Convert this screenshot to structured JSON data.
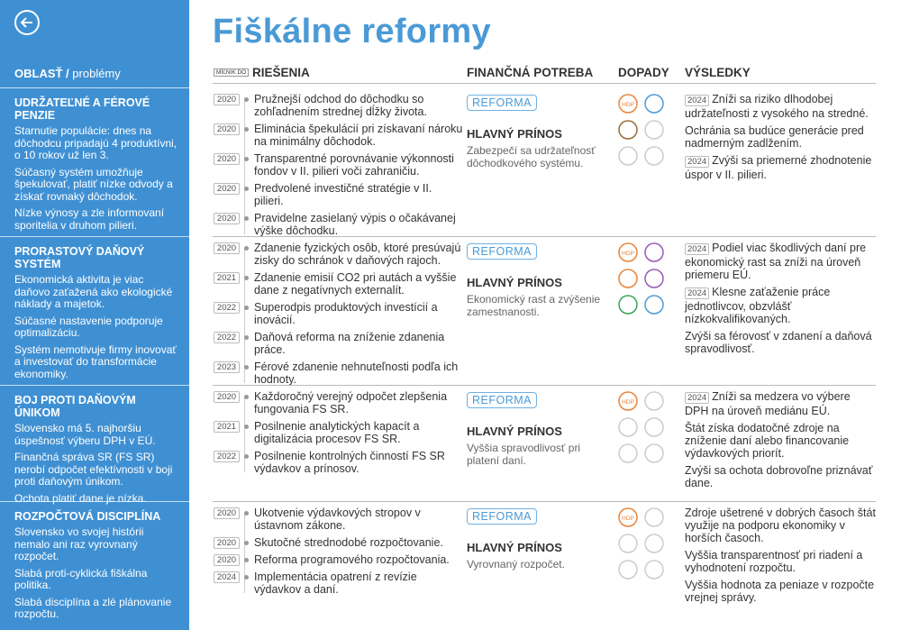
{
  "header": {
    "title": "Fiškálne reformy"
  },
  "columns": {
    "area": "OBLASŤ /",
    "problems": "problémy",
    "milestone": "MÍĽNIK DO",
    "solutions": "RIEŠENIA",
    "financing": "FINANČNÁ POTREBA",
    "impacts": "DOPADY",
    "results": "VÝSLEDKY"
  },
  "sections": [
    {
      "title": "UDRŽATEĽNÉ A FÉROVÉ PENZIE",
      "problems": [
        "Starnutie populácie: dnes na dôchodcu pripadajú 4 produktívni, o 10 rokov už len 3.",
        "Súčasný systém umožňuje špekulovať, platiť nízke odvody a získať rovnaký dôchodok.",
        "Nízke výnosy a zle informovaní sporitelia v druhom pilieri."
      ],
      "solutions": [
        {
          "year": "2020",
          "text": "Pružnejší odchod do dôchodku so zohľadnením strednej dĺžky života."
        },
        {
          "year": "2020",
          "text": "Eliminácia špekulácií pri získavaní nároku na minimálny dôchodok."
        },
        {
          "year": "2020",
          "text": "Transparentné porovnávanie výkonnosti fondov v II. pilieri voči zahraničiu."
        },
        {
          "year": "2020",
          "text": "Predvolené investičné stratégie v II. pilieri."
        },
        {
          "year": "2020",
          "text": "Pravidelne zasielaný výpis o očakávanej výške dôchodku."
        }
      ],
      "reform": "REFORMA",
      "benefit_title": "HLAVNÝ PRÍNOS",
      "benefit": "Zabezpečí sa udržateľnosť dôchodkového systému.",
      "impact_label": "HDP",
      "results": [
        {
          "year": "2024",
          "text": "Zníži sa riziko dlhodobej udržateľnosti z vysokého na stredné."
        },
        {
          "text": "Ochránia sa budúce generácie pred nadmerným zadlžením."
        },
        {
          "year": "2024",
          "text": "Zvýši sa priemerné zhodnotenie úspor v II. pilieri."
        }
      ]
    },
    {
      "title": "PRORASTOVÝ DAŇOVÝ SYSTÉM",
      "problems": [
        "Ekonomická aktivita je viac daňovo zaťažená ako ekologické náklady a majetok.",
        "Súčasné nastavenie podporuje optimalizáciu.",
        "Systém nemotivuje firmy inovovať a investovať do transformácie ekonomiky."
      ],
      "solutions": [
        {
          "year": "2020",
          "text": "Zdanenie fyzických osôb, ktoré presúvajú zisky do schránok v daňových rajoch."
        },
        {
          "year": "2021",
          "text": "Zdanenie emisií CO2 pri autách a vyššie dane z negatívnych externalít."
        },
        {
          "year": "2022",
          "text": "Superodpis produktových investícií a inovácií."
        },
        {
          "year": "2022",
          "text": "Daňová reforma na zníženie zdanenia práce."
        },
        {
          "year": "2023",
          "text": "Férové zdanenie nehnuteľnosti podľa ich hodnoty."
        }
      ],
      "reform": "REFORMA",
      "benefit_title": "HLAVNÝ PRÍNOS",
      "benefit": "Ekonomický rast a zvýšenie zamestnanosti.",
      "impact_label": "HDP",
      "results": [
        {
          "year": "2024",
          "text": "Podiel viac škodlivých daní pre ekonomický rast sa zníži na úroveň priemeru EÚ."
        },
        {
          "year": "2024",
          "text": "Klesne zaťaženie práce jednotlivcov, obzvlášť nízkokvalifikovaných."
        },
        {
          "text": "Zvýši sa férovosť v zdanení a daňová spravodlivosť."
        }
      ]
    },
    {
      "title": "BOJ PROTI DAŇOVÝM ÚNIKOM",
      "problems": [
        "Slovensko má 5. najhoršiu úspešnosť výberu DPH v EÚ.",
        "Finančná správa SR (FS SR) nerobí odpočet efektívnosti v boji proti daňovým únikom.",
        "Ochota platiť dane je nízka."
      ],
      "solutions": [
        {
          "year": "2020",
          "text": "Každoročný verejný odpočet zlepšenia fungovania FS SR."
        },
        {
          "year": "2021",
          "text": "Posilnenie analytických kapacít a digitalizácia procesov FS SR."
        },
        {
          "year": "2022",
          "text": "Posilnenie kontrolných činností FS SR výdavkov a prínosov."
        }
      ],
      "reform": "REFORMA",
      "benefit_title": "HLAVNÝ PRÍNOS",
      "benefit": "Vyššia spravodlivosť pri platení daní.",
      "impact_label": "HDP",
      "results": [
        {
          "year": "2024",
          "text": "Zníži sa medzera vo výbere DPH na úroveň mediánu EÚ."
        },
        {
          "text": "Štát získa dodatočné zdroje na zníženie daní alebo financovanie výdavkových priorít."
        },
        {
          "text": "Zvýši sa ochota dobrovoľne priznávať dane."
        }
      ]
    },
    {
      "title": "ROZPOČTOVÁ DISCIPLÍNA",
      "problems": [
        "Slovensko vo svojej histórii nemalo ani raz vyrovnaný rozpočet.",
        "Slabá proti-cyklická fiškálna politika.",
        "Slabá disciplína a zlé plánovanie rozpočtu."
      ],
      "solutions": [
        {
          "year": "2020",
          "text": "Ukotvenie výdavkových stropov v ústavnom zákone."
        },
        {
          "year": "2020",
          "text": "Skutočné strednodobé rozpočtovanie."
        },
        {
          "year": "2020",
          "text": "Reforma programového rozpočtovania."
        },
        {
          "year": "2024",
          "text": "Implementácia opatrení z revízie výdavkov a daní."
        }
      ],
      "reform": "REFORMA",
      "benefit_title": "HLAVNÝ PRÍNOS",
      "benefit": "Vyrovnaný rozpočet.",
      "impact_label": "HDP",
      "results": [
        {
          "text": "Zdroje ušetrené v dobrých časoch štát využije na podporu ekonomiky v horších časoch."
        },
        {
          "text": "Vyššia transparentnosť pri riadení a vyhodnotení rozpočtu."
        },
        {
          "text": "Vyššia hodnota za peniaze v rozpočte vrejnej správy."
        }
      ]
    }
  ]
}
